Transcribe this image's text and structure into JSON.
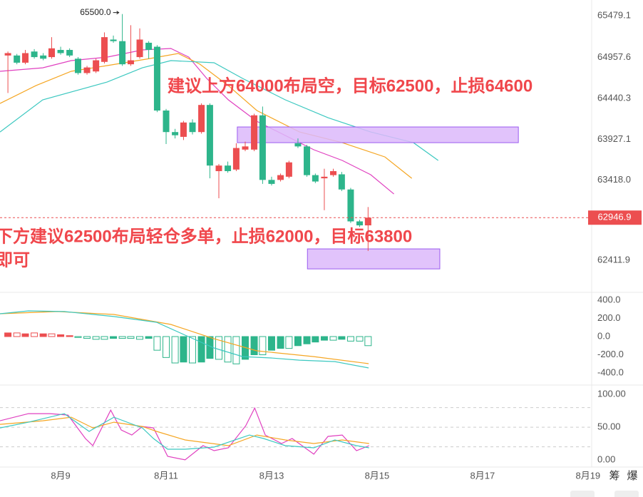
{
  "chart_data": [
    {
      "type": "candlestick",
      "xlim": [
        7.85,
        19.07
      ],
      "ylim": [
        62010,
        65676
      ],
      "yticks": [
        65479.1,
        64957.6,
        64440.3,
        63927.1,
        {
          "value": 63418,
          "label": "63418.0"
        },
        62411.9
      ],
      "grid": false,
      "up_color": "#ec4e50",
      "down_color": "#2db58b",
      "x": [
        8,
        8.17,
        8.33,
        8.5,
        8.67,
        8.83,
        9,
        9.17,
        9.33,
        9.5,
        9.67,
        9.83,
        10,
        10.17,
        10.33,
        10.5,
        10.67,
        10.83,
        11,
        11.17,
        11.33,
        11.5,
        11.67,
        11.83,
        12,
        12.17,
        12.33,
        12.5,
        12.67,
        12.83,
        13,
        13.17,
        13.33,
        13.5,
        13.67,
        13.83,
        14,
        14.17,
        14.33,
        14.5,
        14.67,
        14.83
      ],
      "open": [
        64980,
        64980,
        64890,
        65030,
        64980,
        64960,
        65050,
        65050,
        64940,
        64760,
        64780,
        64900,
        65180,
        65160,
        64870,
        64960,
        65140,
        65090,
        64290,
        64020,
        63960,
        64140,
        64020,
        64360,
        63530,
        63600,
        63550,
        63800,
        63800,
        64230,
        63420,
        63420,
        63460,
        63880,
        63840,
        63480,
        63440,
        63480,
        63490,
        63300,
        62900,
        62850
      ],
      "high": [
        65030,
        65000,
        65050,
        65060,
        65010,
        65210,
        65090,
        65070,
        64960,
        64850,
        64940,
        65270,
        65230,
        65500,
        65360,
        65320,
        65160,
        65110,
        64310,
        64060,
        64160,
        64180,
        64380,
        64380,
        63620,
        63650,
        63880,
        63900,
        64250,
        64340,
        63460,
        63500,
        63660,
        63940,
        63860,
        63500,
        63560,
        63560,
        63520,
        63320,
        62920,
        63080
      ],
      "low": [
        64510,
        64870,
        64870,
        64940,
        64920,
        64940,
        64990,
        64960,
        64740,
        64740,
        64760,
        64880,
        65140,
        64850,
        64850,
        64940,
        64940,
        64270,
        63870,
        63940,
        63920,
        63990,
        64000,
        63440,
        63190,
        63510,
        63530,
        63780,
        63780,
        63370,
        63350,
        63400,
        63440,
        63820,
        63460,
        63380,
        63040,
        63460,
        63280,
        62880,
        62830,
        62530
      ],
      "close": [
        65010,
        64890,
        65010,
        64960,
        64940,
        65070,
        65010,
        64980,
        64760,
        64830,
        64920,
        65210,
        65160,
        64870,
        64920,
        65180,
        65050,
        64290,
        64020,
        63980,
        64140,
        64020,
        64360,
        63600,
        63600,
        63530,
        63820,
        63840,
        64230,
        63420,
        63370,
        63480,
        63640,
        63840,
        63480,
        63400,
        63460,
        63530,
        63300,
        62900,
        62850,
        62946.9
      ],
      "lines": [
        {
          "color": "#e040c0",
          "x": [
            7.85,
            8.66,
            9.2,
            9.88,
            10.55,
            11.09,
            11.43,
            11.77,
            12.18,
            12.72,
            13.26,
            13.8,
            14.34,
            14.88,
            15.32
          ],
          "values": [
            64782,
            64826,
            64916,
            64960,
            65050,
            65068,
            64960,
            64692,
            64424,
            64155,
            63977,
            63798,
            63664,
            63485,
            63243
          ]
        },
        {
          "color": "#f5a623",
          "x": [
            7.85,
            8.53,
            9.2,
            9.88,
            10.69,
            11.23,
            11.64,
            12.18,
            12.72,
            13.53,
            14.34,
            15.15,
            15.66
          ],
          "values": [
            64379,
            64602,
            64782,
            64853,
            64942,
            65005,
            64871,
            64602,
            64290,
            64021,
            63887,
            63708,
            63440
          ]
        },
        {
          "color": "#3cc8c0",
          "x": [
            7.85,
            8.66,
            9.88,
            10.55,
            11.09,
            11.91,
            12.45,
            13.26,
            14.07,
            14.88,
            15.69,
            16.16
          ],
          "values": [
            64021,
            64424,
            64647,
            64826,
            64916,
            64889,
            64692,
            64424,
            64200,
            64021,
            63887,
            63664
          ]
        }
      ],
      "zones": [
        {
          "x": [
            12.35,
            17.68
          ],
          "y": [
            63887,
            64084
          ]
        },
        {
          "x": [
            13.68,
            16.19
          ],
          "y": [
            62304,
            62555
          ]
        }
      ],
      "zone_color": "#dcb8fa",
      "zone_border": "#9b5cf0",
      "last_price": 62946.9,
      "last_price_color": "#ec4e50",
      "max_label": {
        "value": 65500,
        "label": "65500.0"
      },
      "annotations": [
        "建议上方64000布局空，目标62500，止损64600",
        "下方建议62500布局轻仓多单，止损62000，目标63800",
        "即可"
      ],
      "annotation_color": "#f0474c"
    },
    {
      "type": "macd",
      "xlim": [
        7.85,
        19.07
      ],
      "ylim": [
        -470,
        470
      ],
      "yticks": [
        {
          "value": 400,
          "label": "400.0"
        },
        {
          "value": 200,
          "label": "200.0"
        },
        {
          "value": 0,
          "label": "0.0"
        },
        {
          "value": -200,
          "label": "-200.0"
        },
        {
          "value": -400,
          "label": "-400.0"
        }
      ],
      "up_color": "#ec4e50",
      "down_color": "#2db58b",
      "x": [
        8,
        8.17,
        8.33,
        8.5,
        8.67,
        8.83,
        9,
        9.17,
        9.33,
        9.5,
        9.67,
        9.83,
        10,
        10.17,
        10.33,
        10.5,
        10.67,
        10.83,
        11,
        11.17,
        11.33,
        11.5,
        11.67,
        11.83,
        12,
        12.17,
        12.33,
        12.5,
        12.67,
        12.83,
        13,
        13.17,
        13.33,
        13.5,
        13.67,
        13.83,
        14,
        14.17,
        14.33,
        14.5,
        14.67,
        14.83
      ],
      "values": [
        40,
        40,
        30,
        40,
        30,
        30,
        20,
        10,
        -10,
        -20,
        -30,
        -30,
        -20,
        -20,
        -20,
        -30,
        -20,
        -150,
        -230,
        -290,
        -280,
        -290,
        -280,
        -240,
        -250,
        -280,
        -300,
        -250,
        -200,
        -200,
        -150,
        -130,
        -130,
        -100,
        -80,
        -60,
        -40,
        -40,
        -30,
        -50,
        -50,
        -100
      ],
      "lines": [
        {
          "color": "#f5a623",
          "x": [
            7.85,
            8.94,
            10.01,
            11.09,
            11.91,
            12.72,
            13.8,
            14.84
          ],
          "values": [
            251,
            275,
            243,
            133,
            -24,
            -157,
            -220,
            -298
          ]
        },
        {
          "color": "#3cc8c0",
          "x": [
            7.85,
            8.39,
            9.07,
            10.01,
            10.82,
            11.36,
            11.91,
            12.45,
            12.99,
            13.53,
            14.2,
            14.84
          ],
          "values": [
            251,
            282,
            275,
            220,
            157,
            16,
            -125,
            -220,
            -235,
            -259,
            -275,
            -345
          ]
        }
      ]
    },
    {
      "type": "line",
      "xlim": [
        7.85,
        19.07
      ],
      "ylim": [
        -11,
        109
      ],
      "yticks": [
        {
          "value": 100,
          "label": "100.00"
        },
        {
          "value": 50,
          "label": "50.00"
        },
        {
          "value": 0,
          "label": "0.00"
        }
      ],
      "guides": [
        80,
        50,
        20
      ],
      "xticks": [
        {
          "value": 9,
          "label": "8月9"
        },
        {
          "value": 11,
          "label": "8月11"
        },
        {
          "value": 13,
          "label": "8月13"
        },
        {
          "value": 15,
          "label": "8月15"
        },
        {
          "value": 17,
          "label": "8月17"
        },
        {
          "value": 19,
          "label": "8月19"
        }
      ],
      "lines": [
        {
          "color": "#e040c0",
          "x": [
            7.85,
            8.39,
            8.8,
            9.14,
            9.47,
            9.61,
            9.95,
            10.15,
            10.35,
            10.55,
            10.76,
            11.03,
            11.36,
            11.7,
            11.91,
            12.18,
            12.51,
            12.68,
            12.88,
            13.19,
            13.39,
            13.8,
            14.07,
            14.34,
            14.61,
            14.85
          ],
          "values": [
            59.8,
            70.7,
            70.7,
            68.5,
            32.6,
            21.7,
            76.1,
            45.7,
            38,
            51.1,
            48.9,
            5.4,
            0,
            21.7,
            14.1,
            18.5,
            52.2,
            79.3,
            38,
            25,
            32.6,
            8.7,
            35.9,
            38,
            14.1,
            21.7
          ]
        },
        {
          "color": "#f5a623",
          "x": [
            7.85,
            8.66,
            9.2,
            9.61,
            10.01,
            10.55,
            10.82,
            11.36,
            12.18,
            12.72,
            13.26,
            13.8,
            14.34,
            14.85
          ],
          "values": [
            54.3,
            59.8,
            65.2,
            48.9,
            57.6,
            51.1,
            43.5,
            30.4,
            21.7,
            38,
            30.4,
            25,
            30.4,
            25
          ]
        },
        {
          "color": "#3cc8c0",
          "x": [
            7.85,
            8.39,
            9.07,
            9.54,
            10.01,
            10.55,
            10.76,
            11.03,
            11.36,
            11.91,
            12.58,
            12.85,
            13.26,
            13.8,
            14.2,
            14.61,
            14.85
          ],
          "values": [
            48.9,
            57.6,
            70.7,
            43.5,
            65.2,
            48.9,
            32.6,
            16.3,
            16.3,
            19.6,
            38,
            32.6,
            21.7,
            18.5,
            30.4,
            21.7,
            18.5
          ]
        }
      ]
    }
  ],
  "toolbar": [
    "筹",
    "爆"
  ]
}
